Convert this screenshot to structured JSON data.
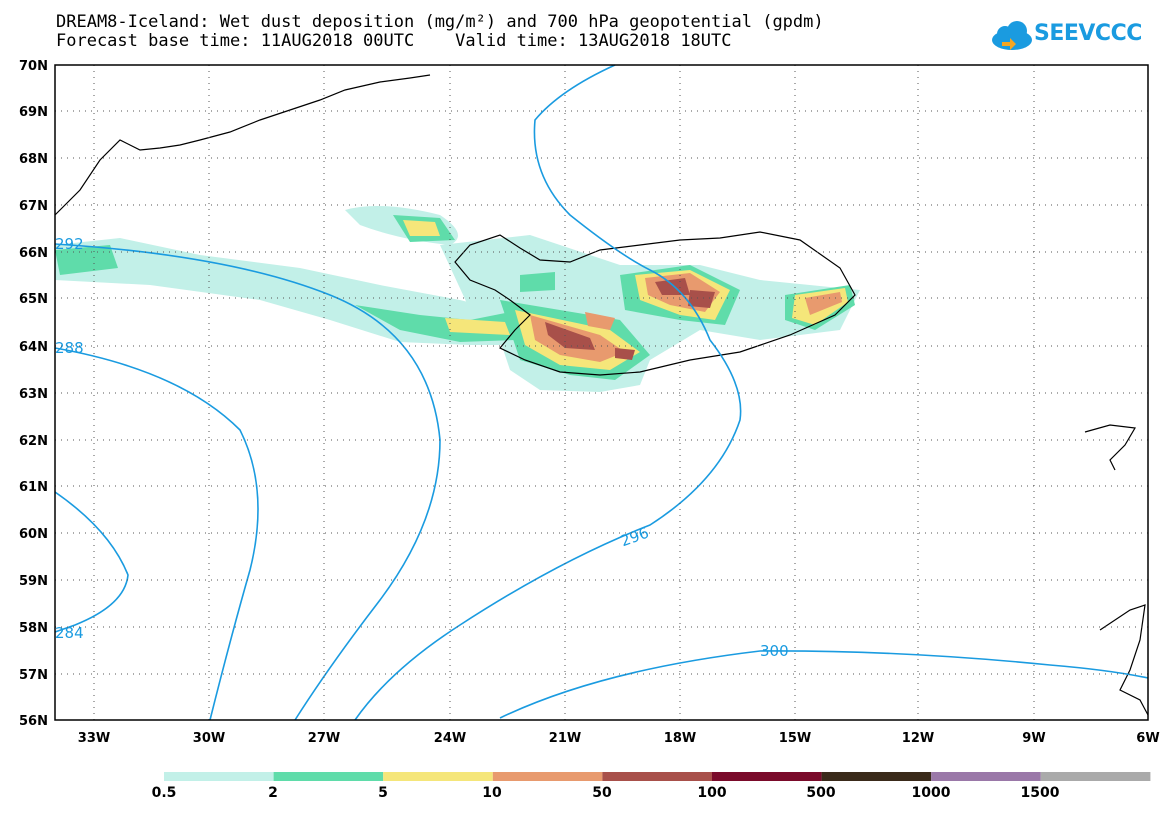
{
  "header": {
    "title_line1": "DREAM8-Iceland: Wet dust deposition (mg/m²) and 700 hPa geopotential (gpdm)",
    "title_line2": "Forecast base time: 11AUG2018 00UTC    Valid time: 13AUG2018 18UTC",
    "logo_text": "SEEVCCC"
  },
  "map": {
    "lat_labels": [
      "70N",
      "69N",
      "68N",
      "67N",
      "66N",
      "65N",
      "64N",
      "63N",
      "62N",
      "61N",
      "60N",
      "59N",
      "58N",
      "57N",
      "56N"
    ],
    "lon_labels": [
      "33W",
      "30W",
      "27W",
      "24W",
      "21W",
      "18W",
      "15W",
      "12W",
      "9W",
      "6W"
    ],
    "contour_labels": [
      "292",
      "288",
      "284",
      "296",
      "300"
    ],
    "contour_color": "#1a9be0"
  },
  "colorbar": {
    "labels": [
      "0.5",
      "2",
      "5",
      "10",
      "50",
      "100",
      "500",
      "1000",
      "1500"
    ],
    "colors": [
      "#c2f0e8",
      "#5fdcaa",
      "#f5e67a",
      "#e89a6e",
      "#a8504a",
      "#7a0a2a",
      "#3a2a1a",
      "#9a78a8",
      "#aaaaaa"
    ]
  }
}
